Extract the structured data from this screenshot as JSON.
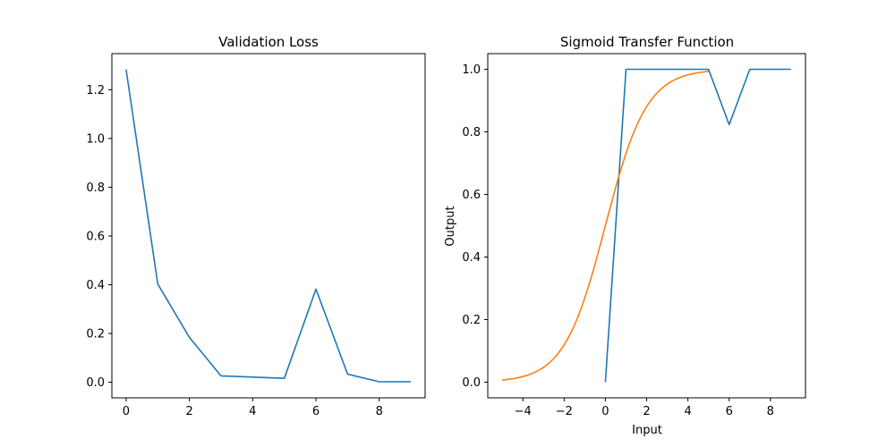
{
  "figure": {
    "background": "#ffffff",
    "line_colors": [
      "#1f77b4",
      "#ff7f0e"
    ]
  },
  "chart_data": [
    {
      "type": "line",
      "title": "Validation Loss",
      "xlabel": "",
      "ylabel": "",
      "xlim": [
        -0.45,
        9.45
      ],
      "ylim": [
        -0.064,
        1.348
      ],
      "xticks": [
        0,
        2,
        4,
        6,
        8
      ],
      "yticks": [
        0.0,
        0.2,
        0.4,
        0.6,
        0.8,
        1.0,
        1.2
      ],
      "xtick_labels": [
        "0",
        "2",
        "4",
        "6",
        "8"
      ],
      "ytick_labels": [
        "0.0",
        "0.2",
        "0.4",
        "0.6",
        "0.8",
        "1.0",
        "1.2"
      ],
      "grid": false,
      "series": [
        {
          "color": "#1f77b4",
          "x": [
            0,
            1,
            2,
            3,
            4,
            5,
            6,
            7,
            8,
            9
          ],
          "y": [
            1.283,
            0.403,
            0.184,
            0.026,
            0.021,
            0.016,
            0.382,
            0.033,
            0.002,
            0.002
          ]
        }
      ]
    },
    {
      "type": "line",
      "title": "Sigmoid Transfer Function",
      "xlabel": "Input",
      "ylabel": "Output",
      "xlim": [
        -5.7,
        9.7
      ],
      "ylim": [
        -0.05,
        1.05
      ],
      "xticks": [
        -4,
        -2,
        0,
        2,
        4,
        6,
        8
      ],
      "yticks": [
        0.0,
        0.2,
        0.4,
        0.6,
        0.8,
        1.0
      ],
      "xtick_labels": [
        "−4",
        "−2",
        "0",
        "2",
        "4",
        "6",
        "8"
      ],
      "ytick_labels": [
        "0.0",
        "0.2",
        "0.4",
        "0.6",
        "0.8",
        "1.0"
      ],
      "grid": false,
      "series": [
        {
          "color": "#1f77b4",
          "x": [
            0,
            1,
            2,
            3,
            4,
            5,
            6,
            7,
            8,
            9
          ],
          "y": [
            0.0,
            1.0,
            1.0,
            1.0,
            1.0,
            1.0,
            0.823,
            1.0,
            1.0,
            1.0
          ]
        },
        {
          "color": "#ff7f0e",
          "function": "sigmoid",
          "x_range": [
            -5,
            5
          ]
        }
      ]
    }
  ]
}
